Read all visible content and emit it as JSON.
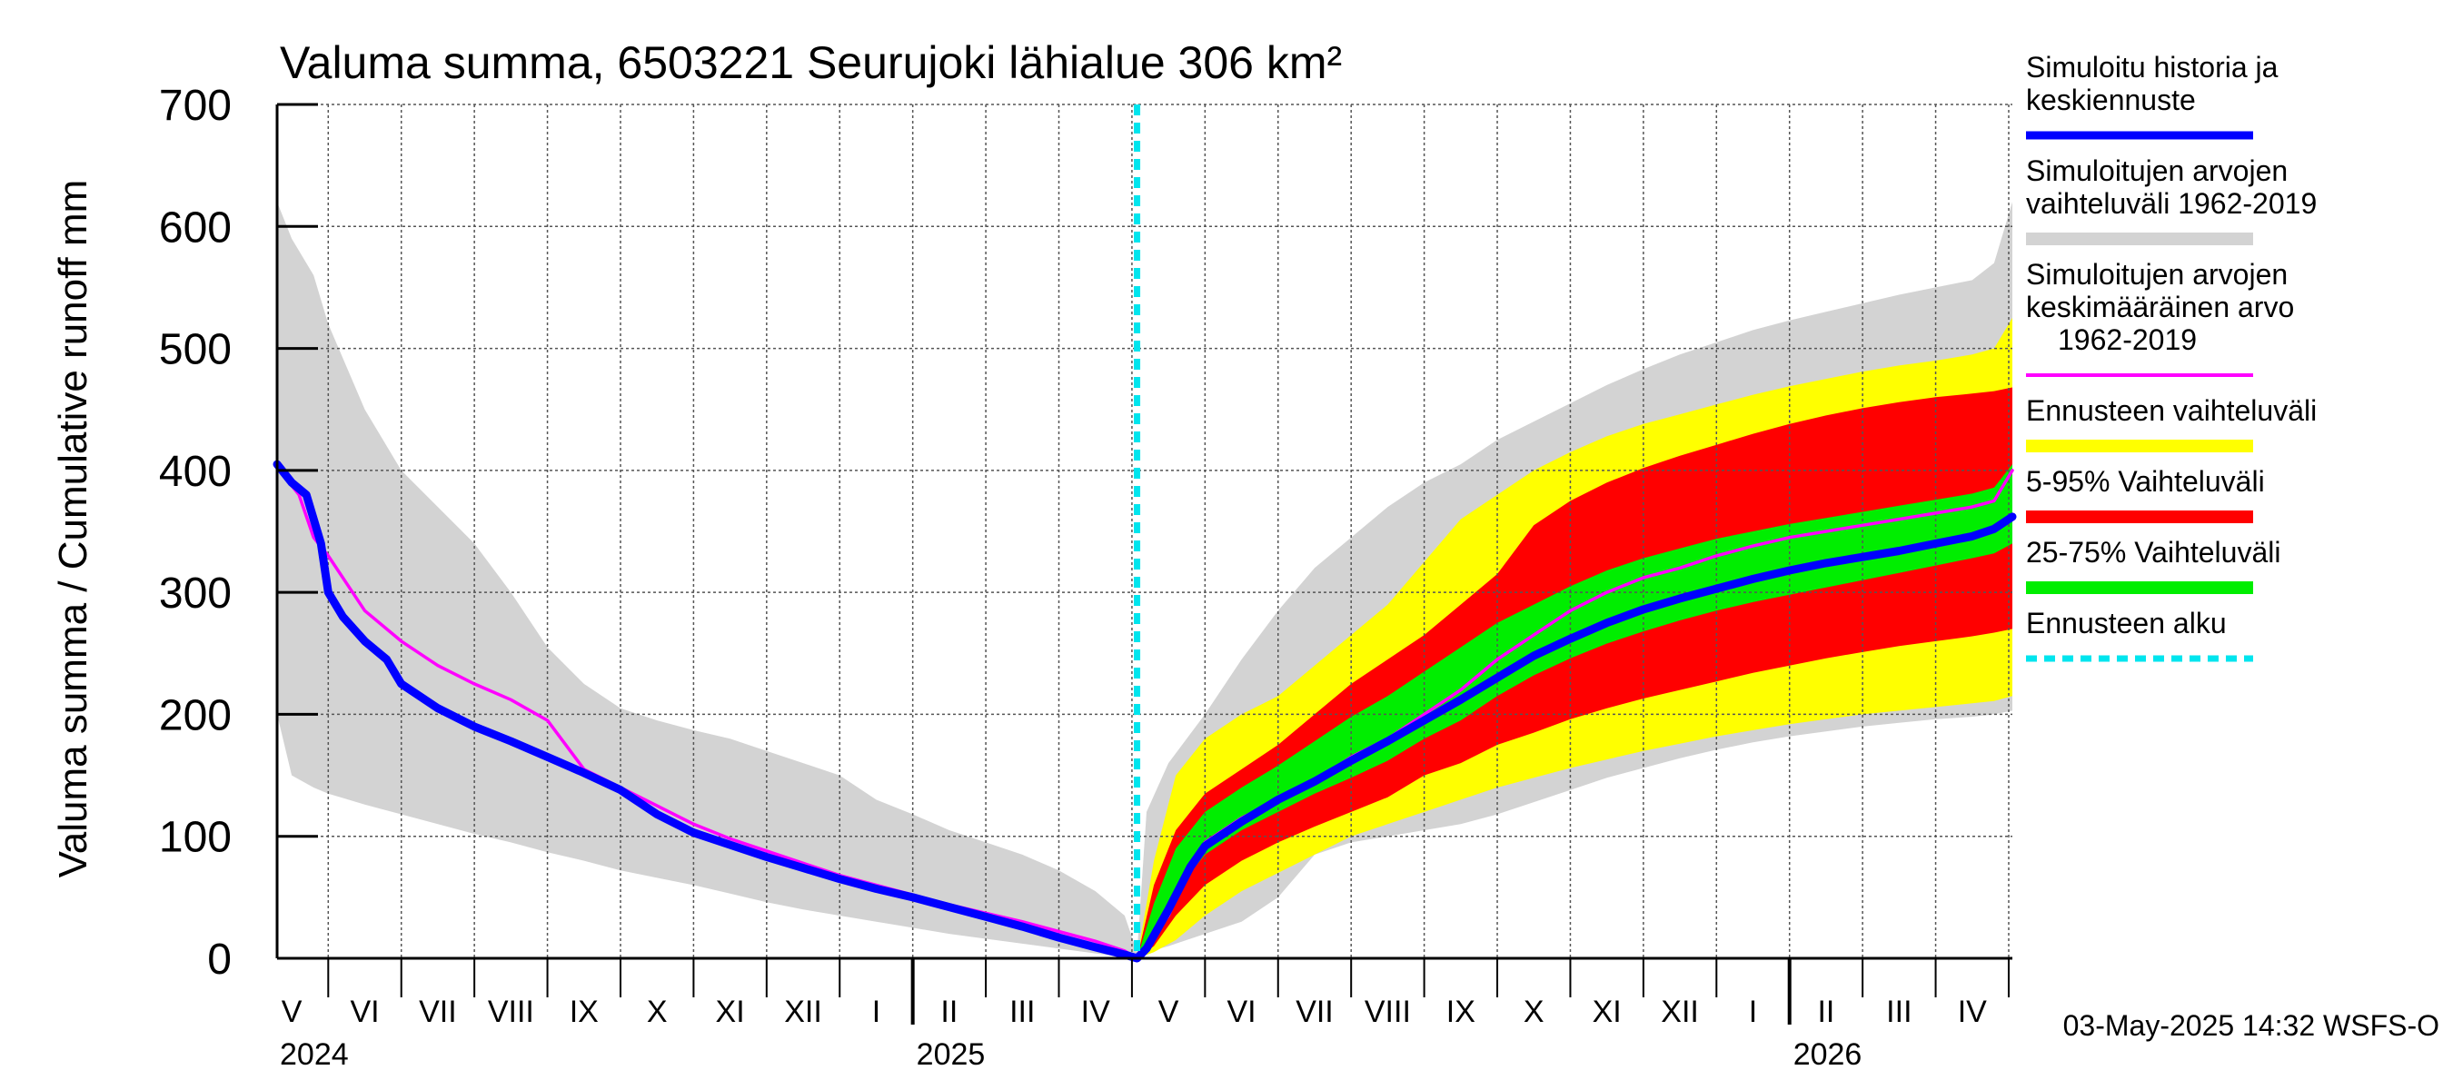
{
  "chart_data": {
    "type": "area",
    "title": "Valuma summa, 6503221 Seurujoki lähialue 306 km²",
    "ylabel": "Valuma summa / Cumulative runoff    mm",
    "ylim": [
      0,
      700
    ],
    "yticks": [
      0,
      100,
      200,
      300,
      400,
      500,
      600,
      700
    ],
    "x_unit": "months since 2024-04-01",
    "xlim": [
      1.3,
      25.05
    ],
    "forecast_start": 13.07,
    "months": [
      {
        "label": "V",
        "center": 1.5
      },
      {
        "label": "VI",
        "center": 2.5
      },
      {
        "label": "VII",
        "center": 3.5
      },
      {
        "label": "VIII",
        "center": 4.5
      },
      {
        "label": "IX",
        "center": 5.5
      },
      {
        "label": "X",
        "center": 6.5
      },
      {
        "label": "XI",
        "center": 7.5
      },
      {
        "label": "XII",
        "center": 8.5
      },
      {
        "label": "I",
        "center": 9.5
      },
      {
        "label": "II",
        "center": 10.5
      },
      {
        "label": "III",
        "center": 11.5
      },
      {
        "label": "IV",
        "center": 12.5
      },
      {
        "label": "V",
        "center": 13.5
      },
      {
        "label": "VI",
        "center": 14.5
      },
      {
        "label": "VII",
        "center": 15.5
      },
      {
        "label": "VIII",
        "center": 16.5
      },
      {
        "label": "IX",
        "center": 17.5
      },
      {
        "label": "X",
        "center": 18.5
      },
      {
        "label": "XI",
        "center": 19.5
      },
      {
        "label": "XII",
        "center": 20.5
      },
      {
        "label": "I",
        "center": 21.5
      },
      {
        "label": "II",
        "center": 22.5
      },
      {
        "label": "III",
        "center": 23.5
      },
      {
        "label": "IV",
        "center": 24.5
      }
    ],
    "years": [
      {
        "label": "2024",
        "at": 1.3
      },
      {
        "label": "2025",
        "at": 9
      },
      {
        "label": "2026",
        "at": 21
      }
    ],
    "series": [
      {
        "name": "Simuloitujen arvojen vaihteluväli 1962-2019",
        "color": "#d3d3d3",
        "kind": "band",
        "x": [
          1.3,
          1.5,
          1.8,
          2,
          2.5,
          3,
          3.5,
          4,
          4.5,
          5,
          5.5,
          6,
          6.5,
          7,
          7.5,
          8,
          8.5,
          9,
          9.5,
          10,
          10.5,
          11,
          11.5,
          12,
          12.5,
          12.9,
          13.07,
          13.2,
          13.5,
          14,
          14.5,
          15,
          15.5,
          16,
          16.5,
          17,
          17.5,
          18,
          18.5,
          19,
          19.5,
          20,
          20.5,
          21,
          21.5,
          22,
          22.5,
          23,
          23.5,
          24,
          24.5,
          24.8,
          25.05
        ],
        "upper": [
          620,
          590,
          560,
          520,
          450,
          400,
          370,
          340,
          300,
          255,
          225,
          205,
          195,
          187,
          180,
          170,
          160,
          150,
          130,
          118,
          105,
          95,
          85,
          72,
          55,
          35,
          5,
          120,
          160,
          200,
          245,
          285,
          320,
          345,
          370,
          390,
          405,
          425,
          440,
          455,
          470,
          483,
          495,
          505,
          515,
          523,
          530,
          537,
          544,
          550,
          556,
          570,
          620
        ],
        "lower": [
          200,
          150,
          140,
          135,
          126,
          118,
          110,
          102,
          95,
          87,
          80,
          72,
          66,
          60,
          53,
          46,
          40,
          35,
          30,
          25,
          20,
          16,
          12,
          8,
          4,
          1,
          0,
          5,
          10,
          20,
          30,
          50,
          85,
          95,
          100,
          105,
          110,
          118,
          128,
          138,
          148,
          156,
          164,
          171,
          177,
          182,
          186,
          190,
          193,
          196,
          198,
          200,
          203
        ]
      },
      {
        "name": "Ennusteen vaihteluväli",
        "color": "#ffff00",
        "kind": "band",
        "x": [
          13.07,
          13.3,
          13.6,
          14,
          14.5,
          15,
          15.5,
          16,
          16.5,
          17,
          17.5,
          18,
          18.5,
          19,
          19.5,
          20,
          20.5,
          21,
          21.5,
          22,
          22.5,
          23,
          23.5,
          24,
          24.5,
          24.8,
          25.05
        ],
        "upper": [
          0,
          80,
          150,
          180,
          200,
          215,
          240,
          265,
          290,
          325,
          360,
          380,
          400,
          415,
          428,
          438,
          446,
          454,
          462,
          469,
          475,
          481,
          486,
          490,
          495,
          500,
          525
        ],
        "lower": [
          0,
          5,
          15,
          35,
          55,
          70,
          85,
          100,
          110,
          120,
          130,
          140,
          148,
          156,
          163,
          170,
          176,
          182,
          187,
          192,
          196,
          200,
          203,
          206,
          209,
          211,
          215
        ]
      },
      {
        "name": "5-95% Vaihteluväli",
        "color": "#ff0000",
        "kind": "band",
        "x": [
          13.07,
          13.3,
          13.6,
          14,
          14.5,
          15,
          15.5,
          16,
          16.5,
          17,
          17.5,
          18,
          18.5,
          19,
          19.5,
          20,
          20.5,
          21,
          21.5,
          22,
          22.5,
          23,
          23.5,
          24,
          24.5,
          24.8,
          25.05
        ],
        "upper": [
          0,
          60,
          105,
          135,
          155,
          175,
          200,
          225,
          245,
          265,
          290,
          315,
          355,
          375,
          390,
          402,
          412,
          421,
          430,
          438,
          445,
          451,
          456,
          460,
          463,
          465,
          468
        ],
        "lower": [
          0,
          10,
          35,
          60,
          80,
          95,
          108,
          120,
          132,
          150,
          160,
          175,
          185,
          196,
          205,
          213,
          220,
          227,
          234,
          240,
          246,
          251,
          256,
          260,
          264,
          267,
          270
        ]
      },
      {
        "name": "25-75% Vaihteluväli",
        "color": "#00ee00",
        "kind": "band",
        "x": [
          13.07,
          13.3,
          13.6,
          14,
          14.5,
          15,
          15.5,
          16,
          16.5,
          17,
          17.5,
          18,
          18.5,
          19,
          19.5,
          20,
          20.5,
          21,
          21.5,
          22,
          22.5,
          23,
          23.5,
          24,
          24.5,
          24.8,
          25.05
        ],
        "upper": [
          0,
          45,
          90,
          120,
          140,
          158,
          178,
          198,
          215,
          235,
          255,
          275,
          290,
          305,
          318,
          328,
          336,
          344,
          350,
          356,
          361,
          366,
          371,
          376,
          381,
          386,
          405
        ],
        "lower": [
          0,
          20,
          55,
          85,
          105,
          120,
          135,
          148,
          162,
          180,
          195,
          215,
          232,
          246,
          258,
          268,
          277,
          285,
          292,
          298,
          304,
          310,
          316,
          322,
          328,
          332,
          340
        ]
      },
      {
        "name": "Simuloitujen arvojen keskimääräinen arvo 1962-2019",
        "color": "#ff00ff",
        "kind": "line",
        "x": [
          1.3,
          1.4,
          1.6,
          1.8,
          2,
          2.5,
          3,
          3.5,
          4,
          4.5,
          5,
          5.5,
          6,
          6.5,
          7,
          7.5,
          8,
          8.5,
          9,
          9.5,
          10,
          10.5,
          11,
          11.5,
          12,
          12.5,
          12.9,
          13.07,
          13.2,
          13.5,
          13.8,
          14,
          14.5,
          15,
          15.5,
          16,
          16.5,
          17,
          17.5,
          18,
          18.5,
          19,
          19.5,
          20,
          20.5,
          21,
          21.5,
          22,
          22.5,
          23,
          23.5,
          24,
          24.5,
          24.8,
          25.05
        ],
        "y": [
          405,
          395,
          380,
          345,
          330,
          285,
          260,
          240,
          225,
          212,
          195,
          155,
          140,
          125,
          110,
          98,
          88,
          78,
          68,
          60,
          52,
          44,
          37,
          30,
          22,
          14,
          6,
          0,
          10,
          35,
          75,
          95,
          115,
          130,
          145,
          165,
          180,
          200,
          220,
          245,
          265,
          285,
          300,
          312,
          320,
          330,
          338,
          345,
          350,
          355,
          360,
          365,
          370,
          375,
          400
        ]
      },
      {
        "name": "Simuloitu historia ja keskiennuste",
        "color": "#0000ff",
        "kind": "line",
        "x": [
          1.3,
          1.5,
          1.7,
          1.9,
          2,
          2.2,
          2.5,
          2.8,
          3,
          3.5,
          4,
          4.5,
          5,
          5.5,
          6,
          6.5,
          7,
          7.5,
          8,
          8.5,
          9,
          9.5,
          10,
          10.5,
          11,
          11.5,
          12,
          12.5,
          12.9,
          13.07,
          13.2,
          13.5,
          13.8,
          14,
          14.5,
          15,
          15.5,
          16,
          16.5,
          17,
          17.5,
          18,
          18.5,
          19,
          19.5,
          20,
          20.5,
          21,
          21.5,
          22,
          22.5,
          23,
          23.5,
          24,
          24.5,
          24.8,
          25.05
        ],
        "y": [
          405,
          390,
          380,
          340,
          300,
          280,
          260,
          245,
          225,
          205,
          190,
          178,
          165,
          152,
          138,
          118,
          103,
          93,
          83,
          74,
          65,
          57,
          50,
          42,
          34,
          26,
          17,
          9,
          3,
          0,
          8,
          40,
          75,
          92,
          112,
          130,
          145,
          162,
          178,
          195,
          212,
          230,
          248,
          262,
          275,
          286,
          295,
          303,
          311,
          318,
          324,
          329,
          334,
          340,
          346,
          352,
          362
        ]
      }
    ],
    "legend_position": "right",
    "legend": [
      {
        "lines": [
          "Simuloitu historia ja",
          "keskiennuste"
        ],
        "color": "#0000ff",
        "style": "line"
      },
      {
        "lines": [
          "Simuloitujen arvojen",
          "vaihteluväli 1962-2019"
        ],
        "color": "#d3d3d3",
        "style": "band"
      },
      {
        "lines": [
          "Simuloitujen arvojen",
          "keskimääräinen arvo",
          "1962-2019"
        ],
        "color": "#ff00ff",
        "style": "thin"
      },
      {
        "lines": [
          "Ennusteen vaihteluväli"
        ],
        "color": "#ffff00",
        "style": "band"
      },
      {
        "lines": [
          "5-95% Vaihteluväli"
        ],
        "color": "#ff0000",
        "style": "band"
      },
      {
        "lines": [
          "25-75% Vaihteluväli"
        ],
        "color": "#00ee00",
        "style": "band"
      },
      {
        "lines": [
          "Ennusteen alku"
        ],
        "color": "#00e5ee",
        "style": "dashed"
      }
    ],
    "footer": "03-May-2025 14:32 WSFS-O"
  }
}
